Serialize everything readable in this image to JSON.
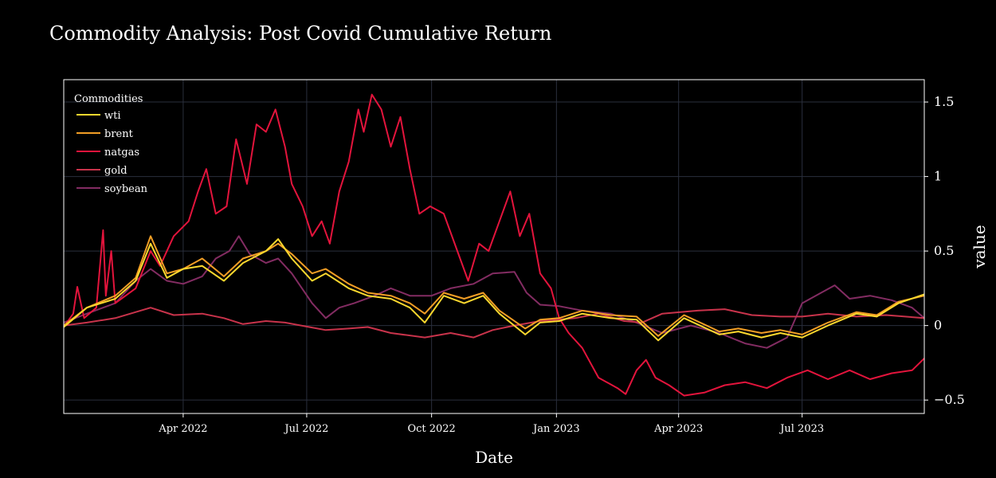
{
  "chart_data": {
    "type": "line",
    "title": "Commodity Analysis: Post Covid Cumulative Return",
    "xlabel": "Date",
    "ylabel": "value",
    "xlim": [
      "2022-01-03",
      "2023-09-29"
    ],
    "ylim": [
      -0.59,
      1.65
    ],
    "x_ticks": [
      {
        "date": "2022-04-01",
        "label": "Apr 2022"
      },
      {
        "date": "2022-07-01",
        "label": "Jul 2022"
      },
      {
        "date": "2022-10-01",
        "label": "Oct 2022"
      },
      {
        "date": "2023-01-01",
        "label": "Jan 2023"
      },
      {
        "date": "2023-04-01",
        "label": "Apr 2023"
      },
      {
        "date": "2023-07-01",
        "label": "Jul 2023"
      }
    ],
    "y_ticks": [
      {
        "value": -0.5,
        "label": "−0.5"
      },
      {
        "value": 0,
        "label": "0"
      },
      {
        "value": 0.5,
        "label": "0.5"
      },
      {
        "value": 1,
        "label": "1"
      },
      {
        "value": 1.5,
        "label": "1.5"
      }
    ],
    "grid": true,
    "legend": {
      "title": "Commodities",
      "position": "top-left"
    },
    "background": "#000000",
    "grid_color": "#2a2f3d",
    "series": [
      {
        "name": "wti",
        "color": "#fcd82e",
        "points": [
          [
            "2022-01-03",
            -0.01
          ],
          [
            "2022-01-20",
            0.12
          ],
          [
            "2022-02-10",
            0.18
          ],
          [
            "2022-02-25",
            0.3
          ],
          [
            "2022-03-08",
            0.55
          ],
          [
            "2022-03-20",
            0.32
          ],
          [
            "2022-04-01",
            0.38
          ],
          [
            "2022-04-15",
            0.4
          ],
          [
            "2022-05-01",
            0.3
          ],
          [
            "2022-05-15",
            0.42
          ],
          [
            "2022-06-01",
            0.5
          ],
          [
            "2022-06-10",
            0.58
          ],
          [
            "2022-06-20",
            0.45
          ],
          [
            "2022-07-05",
            0.3
          ],
          [
            "2022-07-15",
            0.35
          ],
          [
            "2022-08-01",
            0.25
          ],
          [
            "2022-08-15",
            0.2
          ],
          [
            "2022-09-01",
            0.18
          ],
          [
            "2022-09-15",
            0.12
          ],
          [
            "2022-09-26",
            0.02
          ],
          [
            "2022-10-10",
            0.2
          ],
          [
            "2022-10-25",
            0.15
          ],
          [
            "2022-11-08",
            0.2
          ],
          [
            "2022-11-20",
            0.08
          ],
          [
            "2022-12-09",
            -0.06
          ],
          [
            "2022-12-20",
            0.02
          ],
          [
            "2023-01-03",
            0.03
          ],
          [
            "2023-01-20",
            0.08
          ],
          [
            "2023-02-10",
            0.05
          ],
          [
            "2023-03-01",
            0.04
          ],
          [
            "2023-03-17",
            -0.1
          ],
          [
            "2023-04-05",
            0.05
          ],
          [
            "2023-05-01",
            -0.06
          ],
          [
            "2023-05-15",
            -0.04
          ],
          [
            "2023-06-01",
            -0.08
          ],
          [
            "2023-06-15",
            -0.05
          ],
          [
            "2023-07-01",
            -0.08
          ],
          [
            "2023-07-20",
            0.0
          ],
          [
            "2023-08-10",
            0.08
          ],
          [
            "2023-08-25",
            0.06
          ],
          [
            "2023-09-10",
            0.15
          ],
          [
            "2023-09-29",
            0.21
          ]
        ]
      },
      {
        "name": "brent",
        "color": "#f29e25",
        "points": [
          [
            "2022-01-03",
            0.0
          ],
          [
            "2022-01-20",
            0.12
          ],
          [
            "2022-02-10",
            0.2
          ],
          [
            "2022-02-25",
            0.32
          ],
          [
            "2022-03-08",
            0.6
          ],
          [
            "2022-03-20",
            0.35
          ],
          [
            "2022-04-01",
            0.38
          ],
          [
            "2022-04-15",
            0.45
          ],
          [
            "2022-05-01",
            0.33
          ],
          [
            "2022-05-15",
            0.45
          ],
          [
            "2022-06-01",
            0.5
          ],
          [
            "2022-06-10",
            0.55
          ],
          [
            "2022-06-20",
            0.48
          ],
          [
            "2022-07-05",
            0.35
          ],
          [
            "2022-07-15",
            0.38
          ],
          [
            "2022-08-01",
            0.28
          ],
          [
            "2022-08-15",
            0.22
          ],
          [
            "2022-09-01",
            0.2
          ],
          [
            "2022-09-15",
            0.15
          ],
          [
            "2022-09-26",
            0.08
          ],
          [
            "2022-10-10",
            0.22
          ],
          [
            "2022-10-25",
            0.18
          ],
          [
            "2022-11-08",
            0.22
          ],
          [
            "2022-11-20",
            0.1
          ],
          [
            "2022-12-09",
            -0.02
          ],
          [
            "2022-12-20",
            0.04
          ],
          [
            "2023-01-03",
            0.05
          ],
          [
            "2023-01-20",
            0.1
          ],
          [
            "2023-02-10",
            0.07
          ],
          [
            "2023-03-01",
            0.06
          ],
          [
            "2023-03-17",
            -0.07
          ],
          [
            "2023-04-05",
            0.07
          ],
          [
            "2023-05-01",
            -0.04
          ],
          [
            "2023-05-15",
            -0.02
          ],
          [
            "2023-06-01",
            -0.05
          ],
          [
            "2023-06-15",
            -0.03
          ],
          [
            "2023-07-01",
            -0.06
          ],
          [
            "2023-07-20",
            0.02
          ],
          [
            "2023-08-10",
            0.09
          ],
          [
            "2023-08-25",
            0.07
          ],
          [
            "2023-09-10",
            0.16
          ],
          [
            "2023-09-29",
            0.2
          ]
        ]
      },
      {
        "name": "natgas",
        "color": "#e3143c",
        "points": [
          [
            "2022-01-03",
            -0.01
          ],
          [
            "2022-01-10",
            0.08
          ],
          [
            "2022-01-13",
            0.26
          ],
          [
            "2022-01-18",
            0.05
          ],
          [
            "2022-01-27",
            0.12
          ],
          [
            "2022-02-01",
            0.64
          ],
          [
            "2022-02-03",
            0.2
          ],
          [
            "2022-02-07",
            0.5
          ],
          [
            "2022-02-10",
            0.15
          ],
          [
            "2022-02-25",
            0.25
          ],
          [
            "2022-03-08",
            0.5
          ],
          [
            "2022-03-15",
            0.4
          ],
          [
            "2022-03-25",
            0.6
          ],
          [
            "2022-04-05",
            0.7
          ],
          [
            "2022-04-12",
            0.9
          ],
          [
            "2022-04-18",
            1.05
          ],
          [
            "2022-04-25",
            0.75
          ],
          [
            "2022-05-03",
            0.8
          ],
          [
            "2022-05-10",
            1.25
          ],
          [
            "2022-05-18",
            0.95
          ],
          [
            "2022-05-25",
            1.35
          ],
          [
            "2022-06-01",
            1.3
          ],
          [
            "2022-06-08",
            1.45
          ],
          [
            "2022-06-15",
            1.2
          ],
          [
            "2022-06-20",
            0.95
          ],
          [
            "2022-06-28",
            0.8
          ],
          [
            "2022-07-05",
            0.6
          ],
          [
            "2022-07-12",
            0.7
          ],
          [
            "2022-07-18",
            0.55
          ],
          [
            "2022-07-25",
            0.9
          ],
          [
            "2022-08-01",
            1.1
          ],
          [
            "2022-08-08",
            1.45
          ],
          [
            "2022-08-12",
            1.3
          ],
          [
            "2022-08-18",
            1.55
          ],
          [
            "2022-08-25",
            1.45
          ],
          [
            "2022-09-01",
            1.2
          ],
          [
            "2022-09-08",
            1.4
          ],
          [
            "2022-09-15",
            1.05
          ],
          [
            "2022-09-22",
            0.75
          ],
          [
            "2022-09-30",
            0.8
          ],
          [
            "2022-10-10",
            0.75
          ],
          [
            "2022-10-20",
            0.5
          ],
          [
            "2022-10-28",
            0.3
          ],
          [
            "2022-11-05",
            0.55
          ],
          [
            "2022-11-12",
            0.5
          ],
          [
            "2022-11-20",
            0.7
          ],
          [
            "2022-11-28",
            0.9
          ],
          [
            "2022-12-05",
            0.6
          ],
          [
            "2022-12-12",
            0.75
          ],
          [
            "2022-12-16",
            0.55
          ],
          [
            "2022-12-20",
            0.35
          ],
          [
            "2022-12-28",
            0.25
          ],
          [
            "2023-01-03",
            0.05
          ],
          [
            "2023-01-10",
            -0.05
          ],
          [
            "2023-01-20",
            -0.15
          ],
          [
            "2023-02-01",
            -0.35
          ],
          [
            "2023-02-15",
            -0.42
          ],
          [
            "2023-02-21",
            -0.46
          ],
          [
            "2023-03-01",
            -0.3
          ],
          [
            "2023-03-08",
            -0.23
          ],
          [
            "2023-03-15",
            -0.35
          ],
          [
            "2023-03-25",
            -0.4
          ],
          [
            "2023-04-05",
            -0.47
          ],
          [
            "2023-04-20",
            -0.45
          ],
          [
            "2023-05-05",
            -0.4
          ],
          [
            "2023-05-20",
            -0.38
          ],
          [
            "2023-06-05",
            -0.42
          ],
          [
            "2023-06-20",
            -0.35
          ],
          [
            "2023-07-05",
            -0.3
          ],
          [
            "2023-07-20",
            -0.36
          ],
          [
            "2023-08-05",
            -0.3
          ],
          [
            "2023-08-20",
            -0.36
          ],
          [
            "2023-09-05",
            -0.32
          ],
          [
            "2023-09-20",
            -0.3
          ],
          [
            "2023-09-29",
            -0.22
          ]
        ]
      },
      {
        "name": "gold",
        "color": "#c8334b",
        "points": [
          [
            "2022-01-03",
            0.0
          ],
          [
            "2022-01-20",
            0.02
          ],
          [
            "2022-02-10",
            0.05
          ],
          [
            "2022-03-08",
            0.12
          ],
          [
            "2022-03-25",
            0.07
          ],
          [
            "2022-04-15",
            0.08
          ],
          [
            "2022-05-01",
            0.05
          ],
          [
            "2022-05-15",
            0.01
          ],
          [
            "2022-06-01",
            0.03
          ],
          [
            "2022-06-15",
            0.02
          ],
          [
            "2022-07-15",
            -0.03
          ],
          [
            "2022-08-01",
            -0.02
          ],
          [
            "2022-08-15",
            -0.01
          ],
          [
            "2022-09-01",
            -0.05
          ],
          [
            "2022-09-26",
            -0.08
          ],
          [
            "2022-10-15",
            -0.05
          ],
          [
            "2022-11-01",
            -0.08
          ],
          [
            "2022-11-15",
            -0.03
          ],
          [
            "2022-12-01",
            0.0
          ],
          [
            "2022-12-20",
            0.03
          ],
          [
            "2023-01-15",
            0.05
          ],
          [
            "2023-02-01",
            0.08
          ],
          [
            "2023-02-20",
            0.03
          ],
          [
            "2023-03-05",
            0.02
          ],
          [
            "2023-03-20",
            0.08
          ],
          [
            "2023-04-15",
            0.1
          ],
          [
            "2023-05-05",
            0.11
          ],
          [
            "2023-05-25",
            0.07
          ],
          [
            "2023-06-15",
            0.06
          ],
          [
            "2023-07-01",
            0.06
          ],
          [
            "2023-07-20",
            0.08
          ],
          [
            "2023-08-10",
            0.06
          ],
          [
            "2023-09-01",
            0.07
          ],
          [
            "2023-09-29",
            0.05
          ]
        ]
      },
      {
        "name": "soybean",
        "color": "#832c62",
        "points": [
          [
            "2022-01-03",
            0.02
          ],
          [
            "2022-01-20",
            0.08
          ],
          [
            "2022-02-10",
            0.15
          ],
          [
            "2022-02-25",
            0.3
          ],
          [
            "2022-03-08",
            0.38
          ],
          [
            "2022-03-20",
            0.3
          ],
          [
            "2022-04-01",
            0.28
          ],
          [
            "2022-04-15",
            0.33
          ],
          [
            "2022-04-25",
            0.45
          ],
          [
            "2022-05-05",
            0.5
          ],
          [
            "2022-05-12",
            0.6
          ],
          [
            "2022-05-20",
            0.48
          ],
          [
            "2022-06-01",
            0.42
          ],
          [
            "2022-06-10",
            0.45
          ],
          [
            "2022-06-20",
            0.35
          ],
          [
            "2022-07-05",
            0.15
          ],
          [
            "2022-07-15",
            0.05
          ],
          [
            "2022-07-25",
            0.12
          ],
          [
            "2022-08-05",
            0.15
          ],
          [
            "2022-08-20",
            0.2
          ],
          [
            "2022-09-01",
            0.25
          ],
          [
            "2022-09-15",
            0.2
          ],
          [
            "2022-10-01",
            0.2
          ],
          [
            "2022-10-15",
            0.25
          ],
          [
            "2022-11-01",
            0.28
          ],
          [
            "2022-11-15",
            0.35
          ],
          [
            "2022-12-01",
            0.36
          ],
          [
            "2022-12-10",
            0.22
          ],
          [
            "2022-12-20",
            0.14
          ],
          [
            "2023-01-03",
            0.13
          ],
          [
            "2023-01-20",
            0.1
          ],
          [
            "2023-02-10",
            0.08
          ],
          [
            "2023-03-01",
            0.02
          ],
          [
            "2023-03-20",
            -0.05
          ],
          [
            "2023-04-10",
            0.0
          ],
          [
            "2023-05-01",
            -0.05
          ],
          [
            "2023-05-20",
            -0.12
          ],
          [
            "2023-06-05",
            -0.15
          ],
          [
            "2023-06-20",
            -0.08
          ],
          [
            "2023-07-01",
            0.15
          ],
          [
            "2023-07-15",
            0.22
          ],
          [
            "2023-07-25",
            0.27
          ],
          [
            "2023-08-05",
            0.18
          ],
          [
            "2023-08-20",
            0.2
          ],
          [
            "2023-09-05",
            0.17
          ],
          [
            "2023-09-20",
            0.12
          ],
          [
            "2023-09-29",
            0.05
          ]
        ]
      }
    ]
  }
}
